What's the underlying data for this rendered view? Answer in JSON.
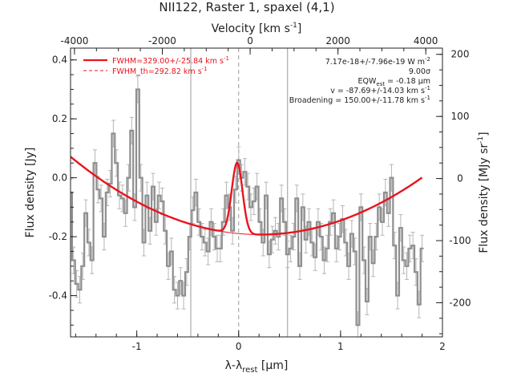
{
  "chart_data": {
    "type": "line",
    "title": "NII122, Raster 1, spaxel (4,1)",
    "xlabel": "λ-λ",
    "xlabel_sub": "rest",
    "xlabel_unit": " [μm]",
    "ylabel": "Flux density [Jy]",
    "top_axis_label": "Velocity [km s",
    "top_axis_label_sup": "-1",
    "top_axis_label_end": "]",
    "right_axis_label": "Flux density [MJy sr",
    "right_axis_label_sup": "-1",
    "right_axis_label_end": "]",
    "xlim": [
      -1.65,
      2.0
    ],
    "ylim": [
      -0.54,
      0.44
    ],
    "x_ticks": [
      -1,
      0,
      1,
      2
    ],
    "y_ticks": [
      -0.4,
      -0.2,
      0.0,
      0.2,
      0.4
    ],
    "top_ticks": [
      -4000,
      -2000,
      0,
      2000,
      4000
    ],
    "right_ticks": [
      -200,
      -100,
      0,
      100,
      200
    ],
    "vertical_lines": [
      -0.47,
      0.0,
      0.48
    ],
    "legend": [
      {
        "label": "FWHM=329.00+/-25.84 km s",
        "sup": "-1",
        "style": "solid"
      },
      {
        "label": "FWHM_th=292.82 km s",
        "sup": "-1",
        "style": "dashed"
      }
    ],
    "annotations": [
      {
        "text": "7.17e-18+/-7.96e-19 W m",
        "sup": "-2"
      },
      {
        "text": "9.00σ"
      },
      {
        "text": "EQW",
        "sub": "est",
        "text_end": " = -0.18 μm"
      },
      {
        "text": "v = -87.69+/-14.03 km s",
        "sup": "-1"
      },
      {
        "text": "Broadening = 150.00+/-11.78 km s",
        "sup": "-1"
      }
    ],
    "series": [
      {
        "style": "step",
        "x": [
          -1.65,
          -1.62,
          -1.59,
          -1.56,
          -1.53,
          -1.5,
          -1.47,
          -1.44,
          -1.41,
          -1.38,
          -1.35,
          -1.32,
          -1.29,
          -1.26,
          -1.23,
          -1.2,
          -1.17,
          -1.14,
          -1.11,
          -1.08,
          -1.05,
          -1.02,
          -0.99,
          -0.96,
          -0.93,
          -0.9,
          -0.87,
          -0.84,
          -0.81,
          -0.78,
          -0.75,
          -0.72,
          -0.69,
          -0.66,
          -0.63,
          -0.6,
          -0.57,
          -0.54,
          -0.51,
          -0.48,
          -0.45,
          -0.42,
          -0.39,
          -0.36,
          -0.33,
          -0.3,
          -0.27,
          -0.24,
          -0.21,
          -0.18,
          -0.15,
          -0.12,
          -0.09,
          -0.06,
          -0.03,
          0.0,
          0.03,
          0.06,
          0.09,
          0.12,
          0.15,
          0.18,
          0.21,
          0.24,
          0.27,
          0.3,
          0.33,
          0.36,
          0.39,
          0.42,
          0.45,
          0.48,
          0.51,
          0.54,
          0.57,
          0.6,
          0.63,
          0.66,
          0.69,
          0.72,
          0.75,
          0.78,
          0.81,
          0.84,
          0.87,
          0.9,
          0.93,
          0.96,
          0.99,
          1.02,
          1.05,
          1.08,
          1.11,
          1.14,
          1.17,
          1.2,
          1.23,
          1.26,
          1.29,
          1.32,
          1.35,
          1.38,
          1.41,
          1.44,
          1.47,
          1.5,
          1.53,
          1.56,
          1.59,
          1.62,
          1.65,
          1.68,
          1.71,
          1.74,
          1.77,
          1.8
        ],
        "y": [
          -0.05,
          -0.28,
          -0.36,
          -0.38,
          -0.3,
          -0.12,
          -0.22,
          -0.28,
          0.05,
          -0.04,
          -0.07,
          -0.2,
          -0.05,
          -0.02,
          0.15,
          0.05,
          -0.06,
          -0.07,
          -0.12,
          0.0,
          0.16,
          -0.1,
          0.3,
          0.0,
          -0.22,
          -0.06,
          -0.18,
          -0.03,
          -0.15,
          -0.06,
          -0.08,
          -0.18,
          -0.3,
          -0.25,
          -0.38,
          -0.4,
          -0.35,
          -0.4,
          -0.32,
          -0.2,
          -0.11,
          -0.05,
          -0.15,
          -0.2,
          -0.22,
          -0.25,
          -0.15,
          -0.2,
          -0.24,
          -0.24,
          -0.15,
          -0.06,
          -0.1,
          -0.18,
          -0.04,
          0.06,
          0.0,
          0.02,
          -0.03,
          -0.1,
          -0.08,
          -0.03,
          -0.15,
          -0.22,
          -0.06,
          -0.26,
          -0.21,
          -0.18,
          -0.2,
          -0.07,
          -0.15,
          -0.26,
          -0.24,
          -0.2,
          -0.07,
          -0.3,
          -0.1,
          -0.21,
          -0.15,
          -0.22,
          -0.27,
          -0.15,
          -0.2,
          -0.28,
          -0.24,
          -0.15,
          -0.12,
          -0.24,
          -0.2,
          -0.14,
          -0.22,
          -0.3,
          -0.19,
          -0.25,
          -0.5,
          -0.1,
          -0.28,
          -0.42,
          -0.2,
          -0.29,
          -0.2,
          -0.1,
          -0.15,
          -0.05,
          -0.12,
          0.0,
          -0.23,
          -0.4,
          -0.17,
          -0.28,
          -0.3,
          -0.24,
          -0.23,
          -0.32,
          -0.43,
          -0.24
        ],
        "yerr": 0.045
      },
      {
        "style": "fit",
        "model": "quadratic + gaussian",
        "baseline_coeffs": [
          -0.1895,
          -0.032,
          0.0765
        ],
        "gaussian": {
          "amplitude": 0.24,
          "center": -0.015,
          "sigma": 0.053
        }
      }
    ],
    "legend_placement": "top-left",
    "grid": false
  }
}
